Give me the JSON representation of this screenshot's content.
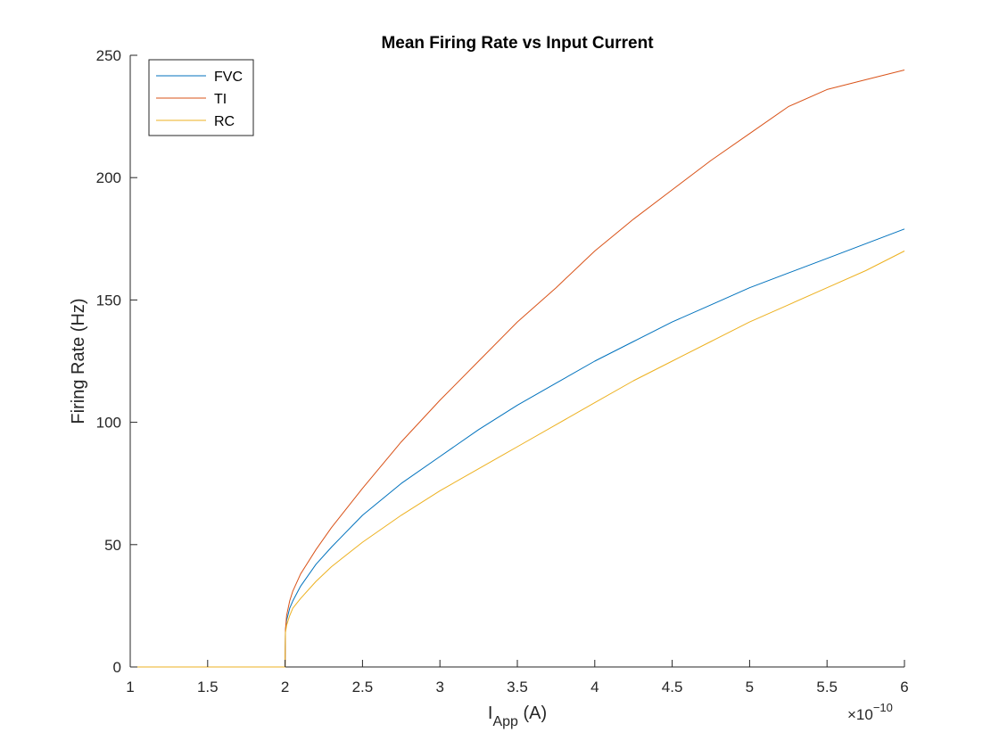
{
  "chart_data": {
    "type": "line",
    "title": "Mean Firing Rate vs Input Current",
    "xlabel_main": "I",
    "xlabel_sub": "App",
    "xlabel_unit": " (A)",
    "ylabel": "Firing Rate (Hz)",
    "x_exponent_base": "×10",
    "x_exponent_power": "−10",
    "xlim": [
      1,
      6
    ],
    "ylim": [
      0,
      250
    ],
    "x_ticks": [
      1,
      1.5,
      2,
      2.5,
      3,
      3.5,
      4,
      4.5,
      5,
      5.5,
      6
    ],
    "x_tick_labels": [
      "1",
      "1.5",
      "2",
      "2.5",
      "3",
      "3.5",
      "4",
      "4.5",
      "5",
      "5.5",
      "6"
    ],
    "y_ticks": [
      0,
      50,
      100,
      150,
      200,
      250
    ],
    "y_tick_labels": [
      "0",
      "50",
      "100",
      "150",
      "200",
      "250"
    ],
    "grid": false,
    "legend_position": "top-left",
    "series": [
      {
        "name": "FVC",
        "color": "#0072BD",
        "x": [
          1,
          2,
          2.0025,
          2.01,
          2.03,
          2.05,
          2.1,
          2.2,
          2.3,
          2.5,
          2.75,
          3,
          3.25,
          3.5,
          3.75,
          4,
          4.25,
          4.5,
          4.75,
          5,
          5.25,
          5.5,
          5.75,
          6
        ],
        "values": [
          0,
          0,
          15,
          19,
          24,
          27,
          33,
          42,
          49,
          62,
          75,
          86,
          97,
          107,
          116,
          125,
          133,
          141,
          148,
          155,
          161,
          167,
          173,
          179
        ]
      },
      {
        "name": "TI",
        "color": "#D95319",
        "x": [
          1,
          2,
          2.0025,
          2.01,
          2.03,
          2.05,
          2.1,
          2.2,
          2.3,
          2.5,
          2.75,
          3,
          3.25,
          3.5,
          3.75,
          4,
          4.25,
          4.5,
          4.75,
          5,
          5.25,
          5.5,
          5.75,
          6
        ],
        "values": [
          0,
          0,
          15,
          21,
          27,
          31,
          38,
          48,
          57,
          73,
          92,
          109,
          125,
          141,
          155,
          170,
          183,
          195,
          207,
          218,
          229,
          236,
          240,
          244
        ]
      },
      {
        "name": "RC",
        "color": "#EDB120",
        "x": [
          1,
          2,
          2.0025,
          2.01,
          2.03,
          2.05,
          2.1,
          2.2,
          2.3,
          2.5,
          2.75,
          3,
          3.25,
          3.5,
          3.75,
          4,
          4.25,
          4.5,
          4.75,
          5,
          5.25,
          5.5,
          5.75,
          6
        ],
        "values": [
          0,
          0,
          14,
          17,
          21,
          24,
          28,
          35,
          41,
          51,
          62,
          72,
          81,
          90,
          99,
          108,
          117,
          125,
          133,
          141,
          148,
          155,
          162,
          170
        ]
      }
    ]
  }
}
